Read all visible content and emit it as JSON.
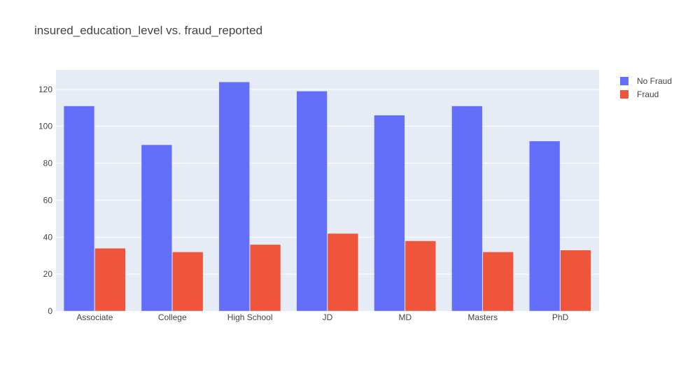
{
  "chart_data": {
    "type": "bar",
    "title": "insured_education_level vs. fraud_reported",
    "xlabel": "",
    "ylabel": "",
    "categories": [
      "Associate",
      "College",
      "High School",
      "JD",
      "MD",
      "Masters",
      "PhD"
    ],
    "series": [
      {
        "name": "No Fraud",
        "color": "#636efa",
        "values": [
          111,
          90,
          124,
          119,
          106,
          111,
          92
        ]
      },
      {
        "name": "Fraud",
        "color": "#ef553b",
        "values": [
          34,
          32,
          36,
          42,
          38,
          32,
          33
        ]
      }
    ],
    "ylim": [
      0,
      130.5
    ],
    "yticks": [
      0,
      20,
      40,
      60,
      80,
      100,
      120
    ],
    "grid": true,
    "legend_position": "top-right",
    "plot_background": "#e5ecf6"
  }
}
